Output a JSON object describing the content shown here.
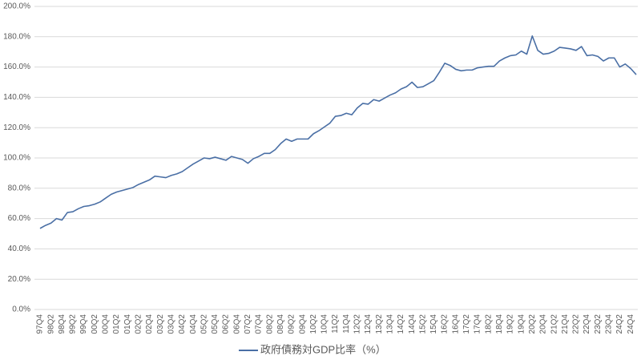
{
  "chart_data": {
    "type": "line",
    "categories": [
      "97Q4",
      null,
      "98Q2",
      null,
      "98Q4",
      null,
      "99Q2",
      null,
      "99Q4",
      null,
      "00Q2",
      null,
      "00Q4",
      null,
      "01Q2",
      null,
      "01Q4",
      null,
      "02Q2",
      null,
      "02Q4",
      null,
      "03Q2",
      null,
      "03Q4",
      null,
      "04Q2",
      null,
      "04Q4",
      null,
      "05Q2",
      null,
      "05Q4",
      null,
      "06Q2",
      null,
      "06Q4",
      null,
      "07Q2",
      null,
      "07Q4",
      null,
      "08Q2",
      null,
      "08Q4",
      null,
      "09Q2",
      null,
      "09Q4",
      null,
      "10Q2",
      null,
      "10Q4",
      null,
      "11Q2",
      null,
      "11Q4",
      null,
      "12Q2",
      null,
      "12Q4",
      null,
      "13Q2",
      null,
      "13Q4",
      null,
      "14Q2",
      null,
      "14Q4",
      null,
      "15Q2",
      null,
      "15Q4",
      null,
      "16Q2",
      null,
      "16Q4",
      null,
      "17Q2",
      null,
      "17Q4",
      null,
      "18Q2",
      null,
      "18Q4",
      null,
      "19Q2",
      null,
      "19Q4",
      null,
      "20Q2",
      null,
      "20Q4",
      null,
      "21Q2",
      null,
      "21Q4",
      null,
      "22Q2",
      null,
      "22Q4",
      null,
      "23Q2",
      null,
      "23Q4",
      null,
      "24Q2",
      null,
      "24Q4",
      null
    ],
    "series": [
      {
        "name": "政府債務対GDP比率（%）",
        "color": "#4a6fa5",
        "values": [
          53.5,
          55.5,
          57,
          60,
          59,
          64,
          64.5,
          66.5,
          68,
          68.5,
          69.5,
          71,
          73.5,
          76,
          77.5,
          78.5,
          79.5,
          80.5,
          82.5,
          84,
          85.5,
          88,
          87.5,
          87,
          88.5,
          89.5,
          91,
          93.5,
          96,
          98,
          100,
          99.5,
          100.5,
          99.5,
          98.5,
          101,
          100,
          99,
          96.5,
          99.5,
          101,
          103,
          103,
          105.5,
          109.5,
          112.5,
          111,
          112.5,
          112.5,
          112.5,
          116,
          118,
          120.5,
          123,
          127.5,
          128,
          129.5,
          128.5,
          133,
          136,
          135.5,
          138.5,
          137.5,
          139.5,
          141.5,
          143,
          145.5,
          147,
          150,
          146.5,
          147,
          149,
          151,
          156.5,
          162.5,
          161,
          158.5,
          157.5,
          158,
          158,
          159.5,
          160,
          160.5,
          160.5,
          164,
          166,
          167.5,
          168,
          170.5,
          168.5,
          180.5,
          171,
          168.5,
          169,
          170.5,
          173,
          172.5,
          172,
          171,
          173.5,
          167.5,
          168,
          167,
          164,
          166,
          166,
          160,
          162,
          159,
          155
        ]
      }
    ],
    "ylim": [
      0,
      200
    ],
    "yticks": [
      {
        "value": 0,
        "label": "0.0%"
      },
      {
        "value": 20,
        "label": "20.0%"
      },
      {
        "value": 40,
        "label": "40.0%"
      },
      {
        "value": 60,
        "label": "60.0%"
      },
      {
        "value": 80,
        "label": "80.0%"
      },
      {
        "value": 100,
        "label": "100.0%"
      },
      {
        "value": 120,
        "label": "120.0%"
      },
      {
        "value": 140,
        "label": "140.0%"
      },
      {
        "value": 160,
        "label": "160.0%"
      },
      {
        "value": 180,
        "label": "180.0%"
      },
      {
        "value": 200,
        "label": "200.0%"
      }
    ],
    "grid": true,
    "legend": "bottom"
  }
}
